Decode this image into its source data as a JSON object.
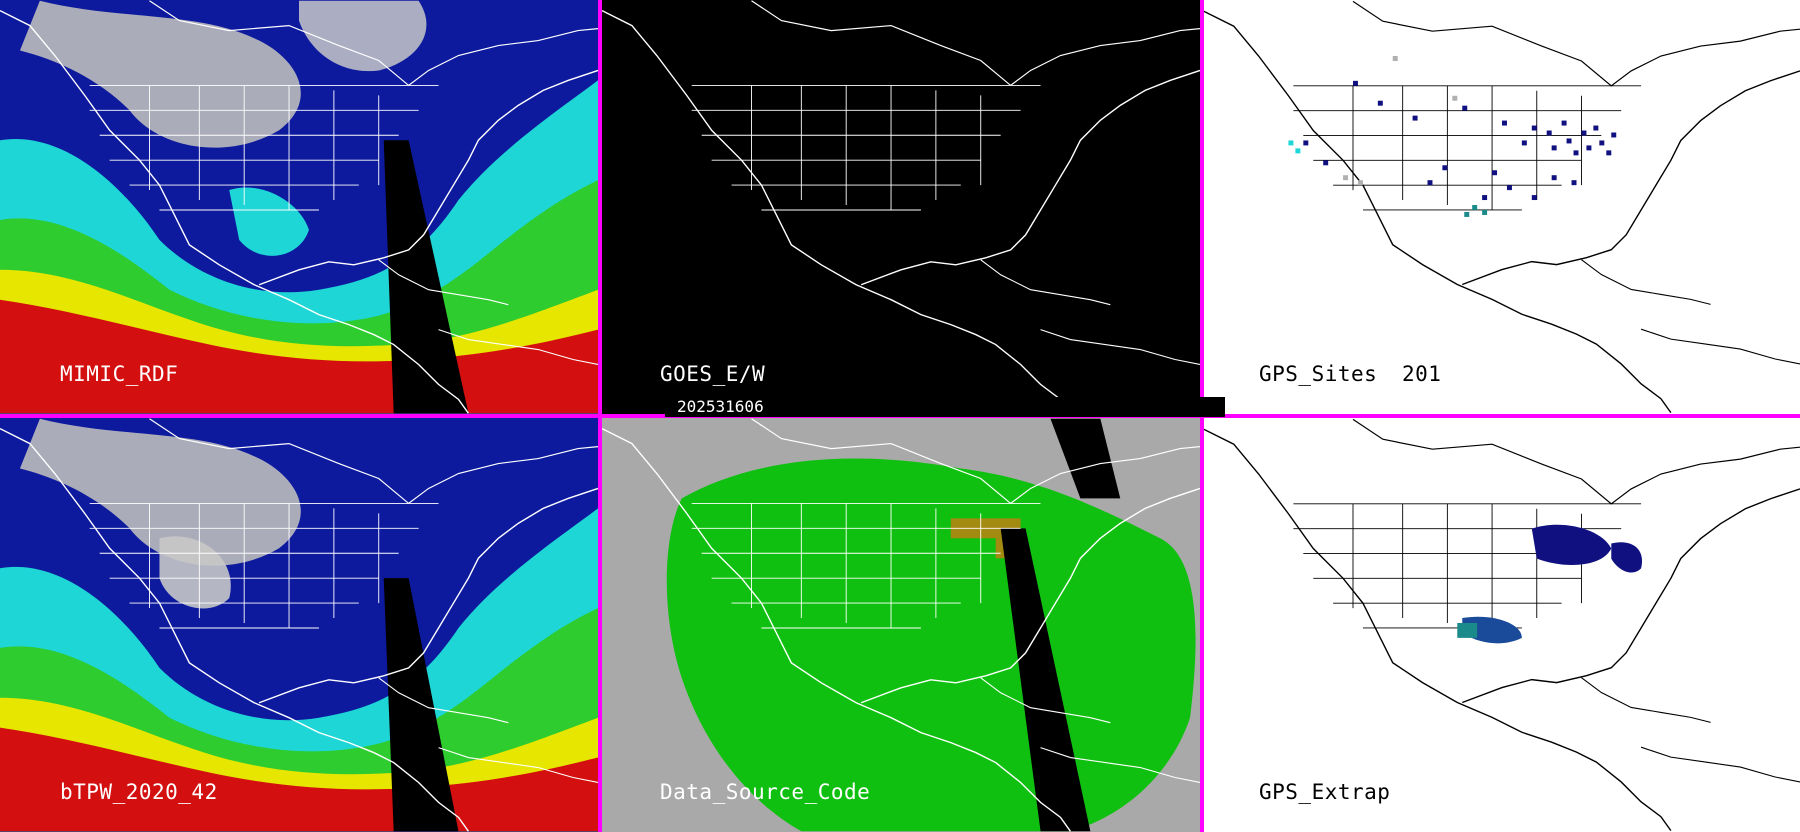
{
  "panels": {
    "mimic": {
      "label": "MIMIC_RDF"
    },
    "goes": {
      "label": "GOES_E/W"
    },
    "gps_sites": {
      "label": "GPS_Sites",
      "count": "201"
    },
    "btpw": {
      "label": "bTPW_2020_42"
    },
    "data_source": {
      "label": "Data_Source_Code"
    },
    "gps_extrap": {
      "label": "GPS_Extrap"
    }
  },
  "timestamp": "202531606",
  "colors": {
    "divider": "#ff00ff",
    "tpw_dry": "#0d1a9e",
    "tpw_moist": "#1ed6d6",
    "tpw_green": "#2ecc2e",
    "tpw_yellow": "#e6e600",
    "tpw_wet": "#d40f0f",
    "cloud_gray": "#bdbdbd",
    "source_green": "#10c010",
    "source_gray": "#a9a9a9",
    "source_olive": "#a38a10",
    "gps_site": "#101080"
  }
}
